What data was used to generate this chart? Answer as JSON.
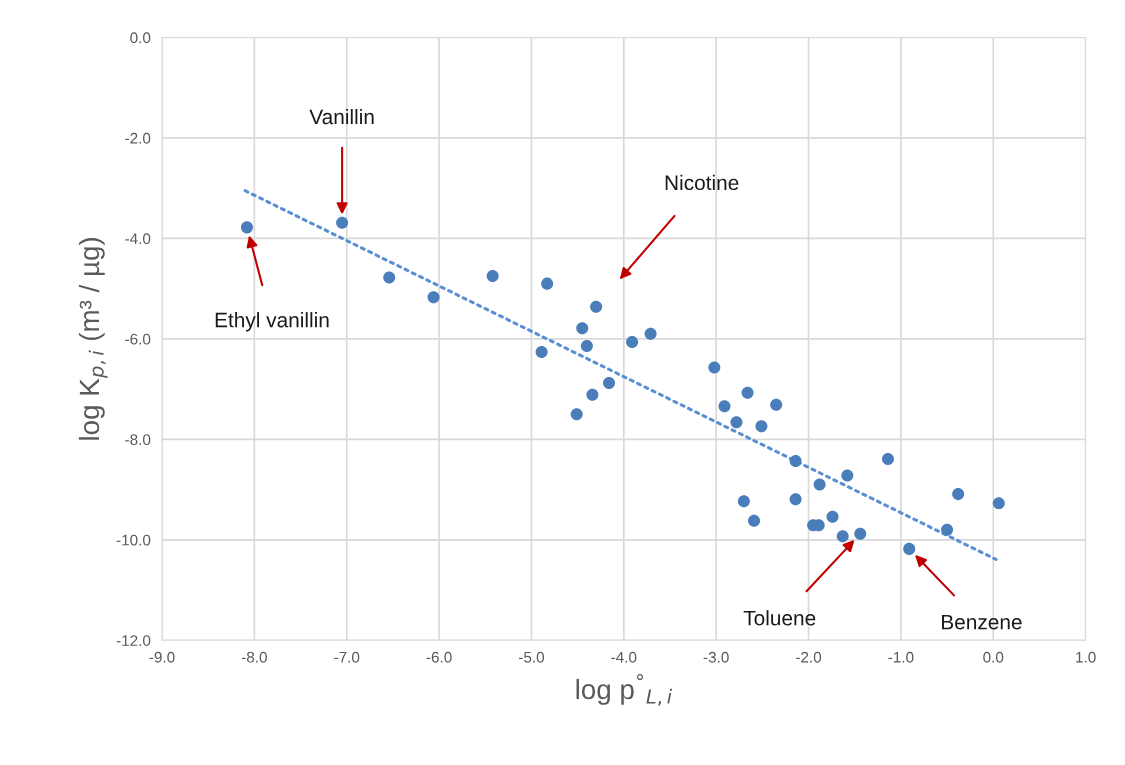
{
  "chart_data": {
    "type": "scatter",
    "xlabel": "log p$^{°}$$_{L,i}$",
    "ylabel": "log K$_{p,i}$ (m³ / µg)",
    "series": [
      {
        "type": "scatter",
        "color": "#4a7ebb",
        "marker": "circle",
        "x": [
          -8.08,
          -7.05,
          -6.54,
          -6.06,
          -5.42,
          -4.83,
          -4.3,
          -4.45,
          -4.4,
          -4.89,
          -3.91,
          -3.71,
          -4.16,
          -4.34,
          -4.51,
          -3.02,
          -2.66,
          -2.91,
          -2.35,
          -2.78,
          -2.51,
          -2.14,
          -1.14,
          -1.58,
          -1.88,
          -2.7,
          -2.14,
          -2.59,
          -1.95,
          -1.89,
          -1.74,
          -1.63,
          -1.44,
          -0.91,
          -0.5,
          -0.38,
          0.06
        ],
        "values": [
          -3.78,
          -3.69,
          -4.78,
          -5.17,
          -4.75,
          -4.9,
          -5.36,
          -5.79,
          -6.14,
          -6.26,
          -6.06,
          -5.9,
          -6.88,
          -7.11,
          -7.5,
          -6.57,
          -7.07,
          -7.34,
          -7.31,
          -7.66,
          -7.74,
          -8.43,
          -8.39,
          -8.72,
          -8.9,
          -9.23,
          -9.19,
          -9.62,
          -9.71,
          -9.71,
          -9.54,
          -9.93,
          -9.88,
          -10.18,
          -9.8,
          -9.09,
          -9.27
        ]
      },
      {
        "type": "line",
        "color": "#5b8fd4",
        "line_style": "dotted",
        "x": [
          -8.1,
          0.03
        ],
        "values": [
          -3.05,
          -10.39
        ]
      }
    ],
    "xlim": [
      -9,
      1
    ],
    "ylim": [
      -12,
      0
    ],
    "xticks": [
      {
        "value": -9,
        "label": "-9.0"
      },
      {
        "value": -8,
        "label": "-8.0"
      },
      {
        "value": -7,
        "label": "-7.0"
      },
      {
        "value": -6,
        "label": "-6.0"
      },
      {
        "value": -5,
        "label": "-5.0"
      },
      {
        "value": -4,
        "label": "-4.0"
      },
      {
        "value": -3,
        "label": "-3.0"
      },
      {
        "value": -2,
        "label": "-2.0"
      },
      {
        "value": -1,
        "label": "-1.0"
      },
      {
        "value": 0,
        "label": "0.0"
      },
      {
        "value": 1,
        "label": "1.0"
      }
    ],
    "yticks": [
      {
        "value": 0,
        "label": "0.0"
      },
      {
        "value": -2,
        "label": "-2.0"
      },
      {
        "value": -4,
        "label": "-4.0"
      },
      {
        "value": -6,
        "label": "-6.0"
      },
      {
        "value": -8,
        "label": "-8.0"
      },
      {
        "value": -10,
        "label": "-10.0"
      },
      {
        "value": -12,
        "label": "-12.0"
      }
    ],
    "grid": true,
    "annotations": [
      "Vanillin",
      "Ethyl vanillin",
      "Nicotine",
      "Toluene",
      "Benzene"
    ]
  }
}
